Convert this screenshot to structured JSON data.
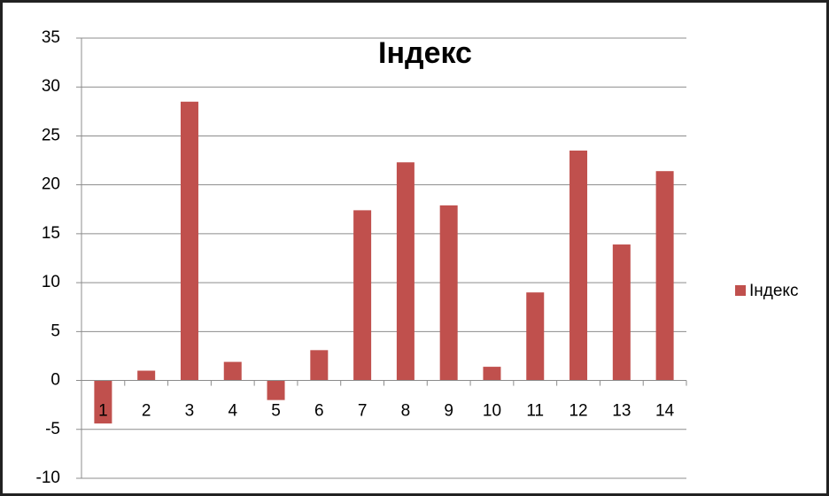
{
  "chart_data": {
    "type": "bar",
    "title": "Індекс",
    "categories": [
      "1",
      "2",
      "3",
      "4",
      "5",
      "6",
      "7",
      "8",
      "9",
      "10",
      "11",
      "12",
      "13",
      "14"
    ],
    "series": [
      {
        "name": "Індекс",
        "color": "#c0504d",
        "values": [
          -4.4,
          1.0,
          28.5,
          1.9,
          -2.0,
          3.1,
          17.4,
          22.3,
          17.9,
          1.4,
          9.0,
          23.5,
          13.9,
          21.4
        ]
      }
    ],
    "ylim": [
      -10,
      35
    ],
    "yticks": [
      -10,
      -5,
      0,
      5,
      10,
      15,
      20,
      25,
      30,
      35
    ],
    "grid": true,
    "legend": "right"
  }
}
